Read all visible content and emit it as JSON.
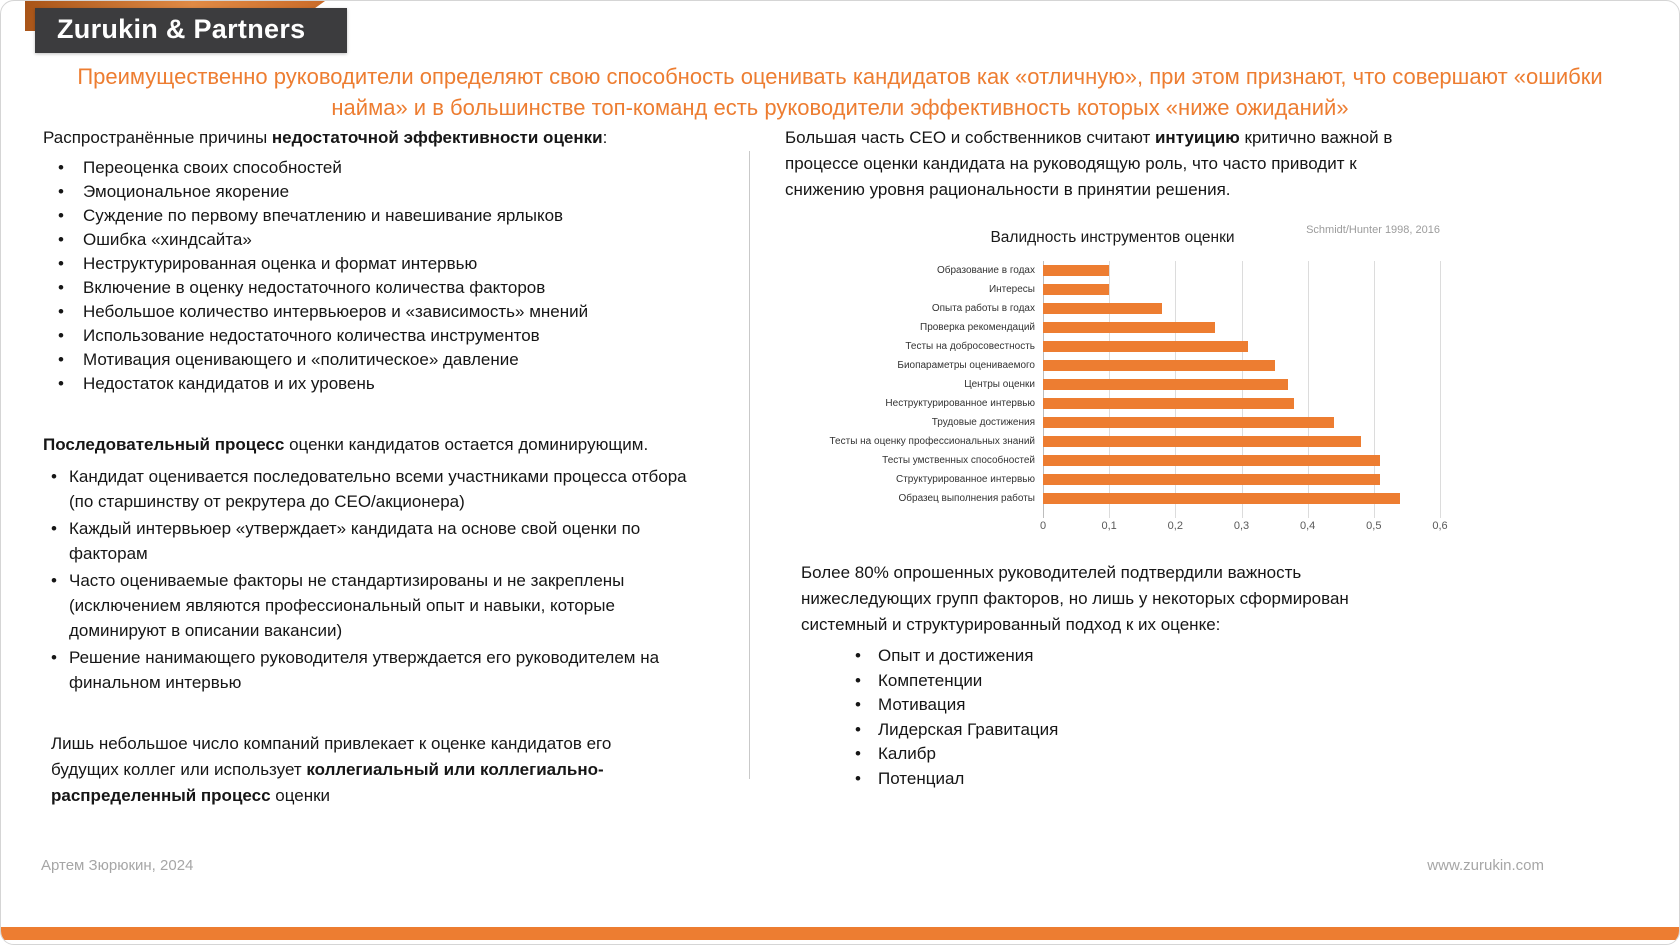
{
  "colors": {
    "accent": "#ED7D31",
    "logo_background": "#3C3C3E",
    "footer_text": "#A6A6A6"
  },
  "logo": {
    "text": "Zurukin & Partners"
  },
  "title": {
    "text": "Преимущественно руководители определяют свою способность оценивать кандидатов как «отличную», при этом признают, что совершают «ошибки найма» и в большинстве топ-команд есть руководители эффективность которых «ниже ожиданий»"
  },
  "left_column": {
    "causes_heading": {
      "normal": "Распространённые причины ",
      "bold": "недостаточной эффективности оценки",
      "tail": ":"
    },
    "causes": [
      "Переоценка своих способностей",
      "Эмоциональное якорение",
      "Суждение по первому впечатлению и навешивание ярлыков",
      "Ошибка «хиндсайта»",
      "Неструктурированная оценка и формат интервью",
      "Включение в оценку недостаточного количества факторов",
      "Небольшое количество интервьюеров и «зависимость» мнений",
      "Использование недостаточного количества инструментов",
      "Мотивация оценивающего и «политическое» давление",
      "Недостаток кандидатов и их уровень"
    ],
    "process_heading": {
      "bold": "Последовательный процесс",
      "normal": " оценки кандидатов остается доминирующим."
    },
    "process_items": [
      "Кандидат оценивается последовательно всеми участниками процесса отбора (по старшинству от рекрутера до CEO/акционера)",
      "Каждый интервьюер «утверждает» кандидата на основе свой оценки по факторам",
      "Часто оцениваемые факторы не стандартизированы и не закреплены (исключением являются профессиональный опыт и навыки, которые доминируют в описании вакансии)",
      "Решение нанимающего руководителя утверждается его руководителем на финальном интервью"
    ],
    "closing": {
      "normal1": "Лишь небольшое число компаний привлекает к оценке кандидатов его будущих коллег или использует ",
      "bold": "коллегиальный или коллегиально-распределенный процесс",
      "normal2": " оценки"
    }
  },
  "right_column": {
    "intuition": {
      "normal1": "Большая часть CEO и собственников считают ",
      "bold": "интуицию",
      "normal2": " критично важной в процессе оценки кандидата на руководящую роль, что часто приводит к снижению уровня рациональности в принятии решения."
    },
    "factors": {
      "text": "Более 80% опрошенных руководителей подтвердили важность нижеследующих групп факторов, но лишь у некоторых сформирован системный и структурированный подход к их оценке:",
      "items": [
        "Опыт и достижения",
        "Компетенции",
        "Мотивация",
        "Лидерская Гравитация",
        "Калибр",
        "Потенциал"
      ]
    }
  },
  "chart_data": {
    "type": "bar",
    "orientation": "horizontal",
    "title": "Валидность инструментов оценки",
    "source": "Schmidt/Hunter 1998, 2016",
    "categories": [
      "Образование в годах",
      "Интересы",
      "Опыта работы в годах",
      "Проверка рекомендаций",
      "Тесты на добросовестность",
      "Биопараметры оцениваемого",
      "Центры оценки",
      "Неструктурированное интервью",
      "Трудовые достижения",
      "Тесты на оценку профессиональных знаний",
      "Тесты умственных способностей",
      "Структурированное интервью",
      "Образец выполнения работы"
    ],
    "values": [
      0.1,
      0.1,
      0.18,
      0.26,
      0.31,
      0.35,
      0.37,
      0.38,
      0.44,
      0.48,
      0.51,
      0.51,
      0.54
    ],
    "xlim": [
      0,
      0.6
    ],
    "x_ticks": [
      "0",
      "0,1",
      "0,2",
      "0,3",
      "0,4",
      "0,5",
      "0,6"
    ],
    "bar_color": "#ED7D31",
    "grid": true,
    "legend": false
  },
  "footer": {
    "author": "Артем Зюрюкин, 2024",
    "website": "www.zurukin.com"
  }
}
